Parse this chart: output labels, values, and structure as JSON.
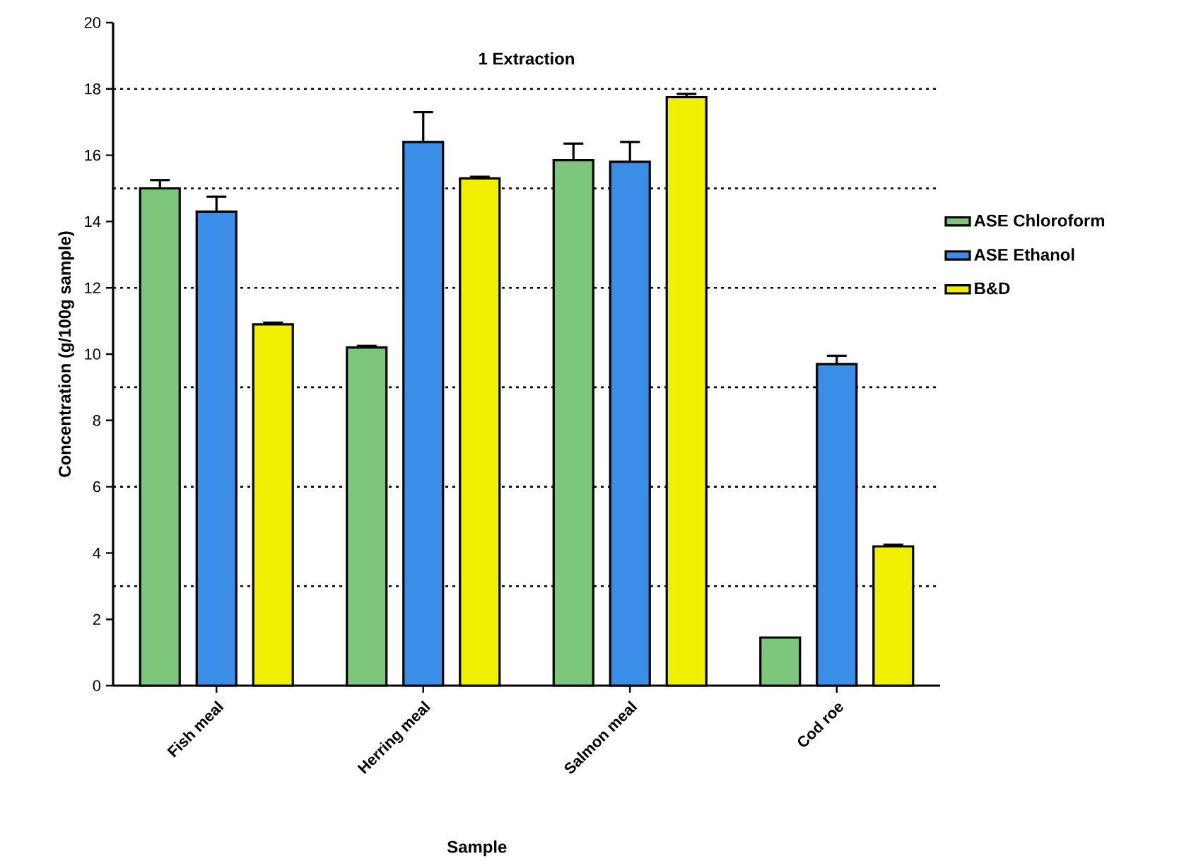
{
  "chart_data": {
    "type": "bar",
    "title": "1 Extraction",
    "xlabel": "Sample",
    "ylabel": "Concentration (g/100g sample)",
    "categories": [
      "Fish meal",
      "Herring meal",
      "Salmon meal",
      "Cod roe"
    ],
    "series": [
      {
        "name": "ASE Chloroform",
        "color": "#7dc77d",
        "values": [
          15.0,
          10.2,
          15.85,
          1.45
        ],
        "errors": [
          0.25,
          0.05,
          0.5,
          null
        ]
      },
      {
        "name": "ASE Ethanol",
        "color": "#3a8ee8",
        "values": [
          14.3,
          16.4,
          15.8,
          9.7
        ],
        "errors": [
          0.45,
          0.9,
          0.6,
          0.25
        ]
      },
      {
        "name": "B&D",
        "color": "#f0f000",
        "values": [
          10.9,
          15.3,
          17.75,
          4.2
        ],
        "errors": [
          0.05,
          0.05,
          0.1,
          0.05
        ]
      }
    ],
    "ylim": [
      0,
      20
    ],
    "yticks": [
      0,
      2,
      4,
      6,
      8,
      10,
      12,
      14,
      16,
      18,
      20
    ],
    "ref_lines": [
      {
        "axis": "y",
        "value": 3,
        "line_style": "dotted",
        "color": "#000000"
      },
      {
        "axis": "y",
        "value": 6,
        "line_style": "dotted",
        "color": "#000000"
      },
      {
        "axis": "y",
        "value": 9,
        "line_style": "dotted",
        "color": "#000000"
      },
      {
        "axis": "y",
        "value": 12,
        "line_style": "dotted",
        "color": "#000000"
      },
      {
        "axis": "y",
        "value": 15,
        "line_style": "dotted",
        "color": "#000000"
      },
      {
        "axis": "y",
        "value": 18,
        "line_style": "dotted",
        "color": "#000000"
      }
    ],
    "legend": "right"
  }
}
